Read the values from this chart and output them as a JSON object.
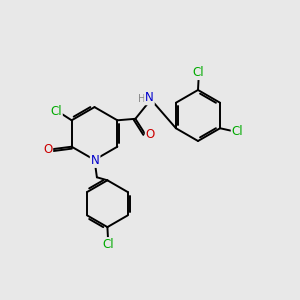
{
  "bg_color": "#e8e8e8",
  "atom_colors": {
    "C": "#000000",
    "N": "#0000cc",
    "O": "#cc0000",
    "Cl": "#00aa00",
    "H": "#888888"
  },
  "bond_color": "#000000",
  "bond_width": 1.4,
  "font_size_atom": 8.5
}
